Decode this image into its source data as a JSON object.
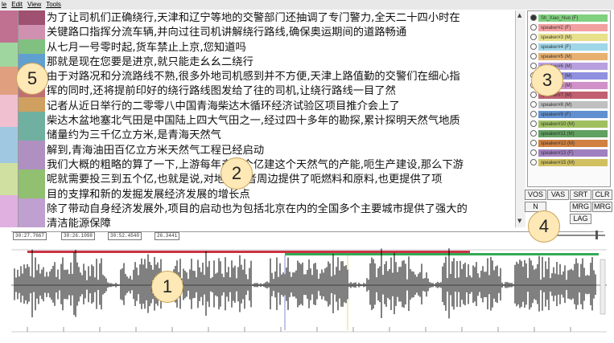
{
  "menu": {
    "file": "le",
    "edit": "Edit",
    "view": "View",
    "tools": "Tools"
  },
  "transcript": {
    "lines": [
      "为了让司机们正确绕行,天津和辽宁等地的交警部门还抽调了专门警力,全天二十四小时在",
      "关键路口指挥分流车辆,并向过往司机讲解绕行路线,确保奥运期间的道路畅通",
      "从七月一号零时起,货车禁止上京,您知道吗",
      "那就是现在您要是进京,就只能走幺幺二绕行",
      "由于对路况和分流路线不熟,很多外地司机感到并不方便,天津上路值勤的交警们在细心指",
      "挥的同时,还将提前印好的绕行路线图发给了往的司机,让绕行路线一目了然",
      "记者从近日举行的二零零八中国青海柴达木循环经济试验区项目推介会上了",
      "柴达木盆地塞北气田是中国陆上四大气田之一,经过四十多年的勘探,累计探明天然气地质",
      "储量约为三千亿立方米,是青海天然气",
      "解到,青海油田百亿立方米天然气工程已经启动",
      "我们大概的粗略的算了一下,上游每年产一个亿建这个天然气的产能,呃生产建设,那么下游",
      "呢就需要投三到五个亿,也就是说,对地方或者周边提供了呃燃料和原料,也更提供了项",
      "目的支撑和新的发掘发展经济发展的增长点",
      "除了带动自身经济发展外,项目的启动也为包括北京在内的全国多个主要城市提供了强大的",
      "清洁能源保障"
    ]
  },
  "speakers": [
    {
      "label": "Sh_Xiao_Nuo (F)",
      "color": "#7fd17f",
      "selected": true
    },
    {
      "label": "speaker#2 (F)",
      "color": "#f3a0a0"
    },
    {
      "label": "speaker#3 (M)",
      "color": "#e8e08a"
    },
    {
      "label": "speaker#4 (F)",
      "color": "#9fd6e8"
    },
    {
      "label": "speaker#5 (M)",
      "color": "#e8b070"
    },
    {
      "label": "speaker#6 (M)",
      "color": "#b8a0e0"
    },
    {
      "label": "speaker#7 (M)",
      "color": "#9090e0"
    },
    {
      "label": "speaker#8 (M)",
      "color": "#d090c8"
    },
    {
      "label": "speaker#7 (M)",
      "color": "#c06070"
    },
    {
      "label": "speaker#8 (M)",
      "color": "#c0c0c0"
    },
    {
      "label": "speaker#9 (F)",
      "color": "#6090d0"
    },
    {
      "label": "speaker#10 (M)",
      "color": "#a0c060"
    },
    {
      "label": "speaker#11 (M)",
      "color": "#60a060"
    },
    {
      "label": "speaker#12 (M)",
      "color": "#d08040"
    },
    {
      "label": "speaker#13 (F)",
      "color": "#a080c0"
    },
    {
      "label": "speaker#15 (M)",
      "color": "#d0c060"
    }
  ],
  "buttons": {
    "vos": "VOS",
    "vas": "VAS",
    "srt": "SRT",
    "clr": "CLR",
    "n": "N",
    "mrg": "MRG",
    "mrg2": "MRG",
    "lag": "LAG"
  },
  "timebar": {
    "t1": "30:27.7667",
    "t2": "30:26.1098",
    "t3": "30:52.4540",
    "t4": "26.3441"
  },
  "callouts": {
    "c1": "1",
    "c2": "2",
    "c3": "3",
    "c4": "4",
    "c5": "5"
  },
  "colors": {
    "accent_red": "#cc3344",
    "accent_green": "#33aa55",
    "selection_line": "#e8d870",
    "cursor_line": "#8888cc",
    "callout_fill": "#fde8b6"
  }
}
